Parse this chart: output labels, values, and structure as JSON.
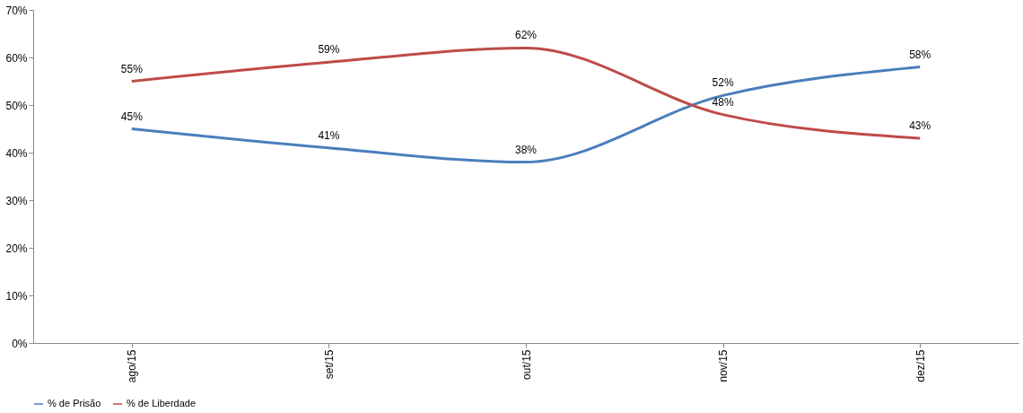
{
  "chart_data": {
    "type": "line",
    "categories": [
      "ago/15",
      "set/15",
      "out/15",
      "nov/15",
      "dez/15"
    ],
    "series": [
      {
        "name": "% de Prisão",
        "color": "#4a7ebb",
        "values": [
          45,
          41,
          38,
          52,
          58
        ],
        "value_labels": [
          "45%",
          "41%",
          "38%",
          "52%",
          "58%"
        ]
      },
      {
        "name": "% de Liberdade",
        "color": "#be4b48",
        "values": [
          55,
          59,
          62,
          48,
          43
        ],
        "value_labels": [
          "55%",
          "59%",
          "62%",
          "48%",
          "43%"
        ]
      }
    ],
    "ylim": [
      0,
      70
    ],
    "yticks": [
      {
        "value": 0,
        "label": "0%"
      },
      {
        "value": 10,
        "label": "10%"
      },
      {
        "value": 20,
        "label": "20%"
      },
      {
        "value": 30,
        "label": "30%"
      },
      {
        "value": 40,
        "label": "40%"
      },
      {
        "value": 50,
        "label": "50%"
      },
      {
        "value": 60,
        "label": "60%"
      },
      {
        "value": 70,
        "label": "70%"
      }
    ],
    "grid": false,
    "legend": "bottom",
    "marker": "none",
    "line_style": "solid"
  }
}
